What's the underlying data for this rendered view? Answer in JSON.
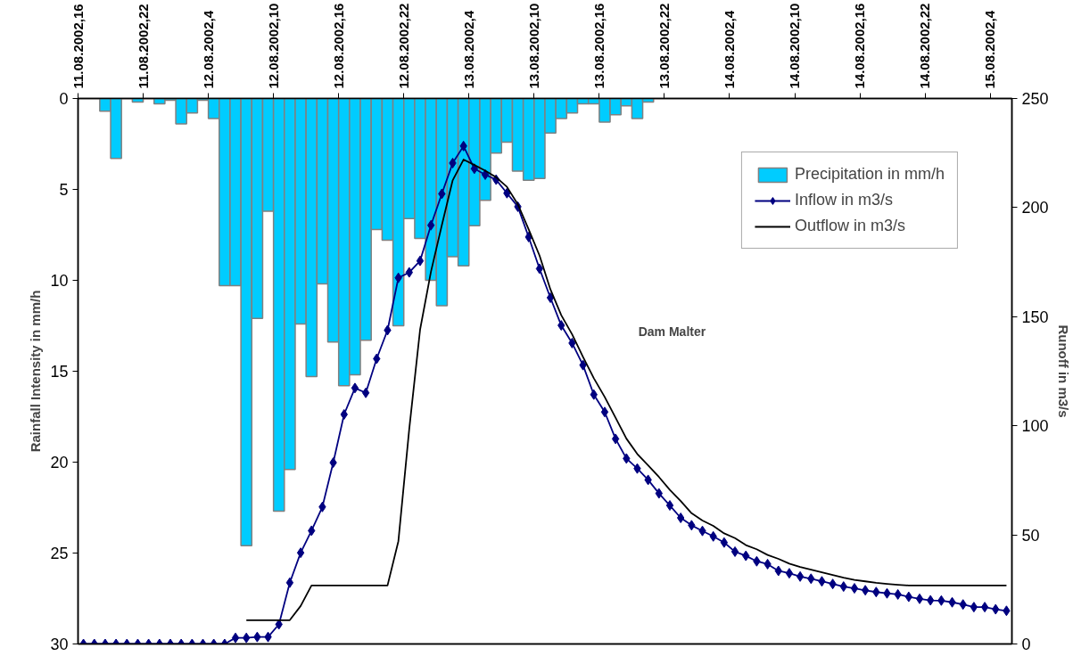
{
  "chart_data": {
    "type": "bar",
    "ylabel": "Rainfall Intensity in mm/h",
    "y2label": "Runoff in m3/s",
    "annotations": [
      "Dam Malter"
    ],
    "x": [
      "2002-08-11T16:30",
      "2002-08-11T17:30",
      "2002-08-11T18:30",
      "2002-08-11T19:30",
      "2002-08-11T20:30",
      "2002-08-11T21:30",
      "2002-08-11T22:30",
      "2002-08-11T23:30",
      "2002-08-12T00:30",
      "2002-08-12T01:30",
      "2002-08-12T02:30",
      "2002-08-12T03:30",
      "2002-08-12T04:30",
      "2002-08-12T05:30",
      "2002-08-12T06:30",
      "2002-08-12T07:30",
      "2002-08-12T08:30",
      "2002-08-12T09:30",
      "2002-08-12T10:30",
      "2002-08-12T11:30",
      "2002-08-12T12:30",
      "2002-08-12T13:30",
      "2002-08-12T14:30",
      "2002-08-12T15:30",
      "2002-08-12T16:30",
      "2002-08-12T17:30",
      "2002-08-12T18:30",
      "2002-08-12T19:30",
      "2002-08-12T20:30",
      "2002-08-12T21:30",
      "2002-08-12T22:30",
      "2002-08-12T23:30",
      "2002-08-13T00:30",
      "2002-08-13T01:30",
      "2002-08-13T02:30",
      "2002-08-13T03:30",
      "2002-08-13T04:30",
      "2002-08-13T05:30",
      "2002-08-13T06:30",
      "2002-08-13T07:30",
      "2002-08-13T08:30",
      "2002-08-13T09:30",
      "2002-08-13T10:30",
      "2002-08-13T11:30",
      "2002-08-13T12:30",
      "2002-08-13T13:30",
      "2002-08-13T14:30",
      "2002-08-13T15:30",
      "2002-08-13T16:30",
      "2002-08-13T17:30",
      "2002-08-13T18:30",
      "2002-08-13T19:30",
      "2002-08-13T20:30",
      "2002-08-13T21:30",
      "2002-08-13T22:30",
      "2002-08-13T23:30",
      "2002-08-14T00:30",
      "2002-08-14T01:30",
      "2002-08-14T02:30",
      "2002-08-14T03:30",
      "2002-08-14T04:30",
      "2002-08-14T05:30",
      "2002-08-14T06:30",
      "2002-08-14T07:30",
      "2002-08-14T08:30",
      "2002-08-14T09:30",
      "2002-08-14T10:30",
      "2002-08-14T11:30",
      "2002-08-14T12:30",
      "2002-08-14T13:30",
      "2002-08-14T14:30",
      "2002-08-14T15:30",
      "2002-08-14T16:30",
      "2002-08-14T17:30",
      "2002-08-14T18:30",
      "2002-08-14T19:30",
      "2002-08-14T20:30",
      "2002-08-14T21:30",
      "2002-08-14T22:30",
      "2002-08-14T23:30",
      "2002-08-15T00:30",
      "2002-08-15T01:30",
      "2002-08-15T02:30",
      "2002-08-15T03:30",
      "2002-08-15T04:30",
      "2002-08-15T05:30"
    ],
    "xlim": [
      "2002-08-11T16:00",
      "2002-08-15T06:00"
    ],
    "xticks": [
      {
        "value": "2002-08-11T16:00",
        "label": "11.08.2002,16"
      },
      {
        "value": "2002-08-11T22:00",
        "label": "11.08.2002,22"
      },
      {
        "value": "2002-08-12T04:00",
        "label": "12.08.2002,4"
      },
      {
        "value": "2002-08-12T10:00",
        "label": "12.08.2002,10"
      },
      {
        "value": "2002-08-12T16:00",
        "label": "12.08.2002,16"
      },
      {
        "value": "2002-08-12T22:00",
        "label": "12.08.2002,22"
      },
      {
        "value": "2002-08-13T04:00",
        "label": "13.08.2002,4"
      },
      {
        "value": "2002-08-13T10:00",
        "label": "13.08.2002,10"
      },
      {
        "value": "2002-08-13T16:00",
        "label": "13.08.2002,16"
      },
      {
        "value": "2002-08-13T22:00",
        "label": "13.08.2002,22"
      },
      {
        "value": "2002-08-14T04:00",
        "label": "14.08.2002,4"
      },
      {
        "value": "2002-08-14T10:00",
        "label": "14.08.2002,10"
      },
      {
        "value": "2002-08-14T16:00",
        "label": "14.08.2002,16"
      },
      {
        "value": "2002-08-14T22:00",
        "label": "14.08.2002,22"
      },
      {
        "value": "2002-08-15T04:00",
        "label": "15.08.2002,4"
      }
    ],
    "ylim": [
      30,
      0
    ],
    "yticks": [
      0,
      5,
      10,
      15,
      20,
      25,
      30
    ],
    "y2lim": [
      0,
      250
    ],
    "y2ticks": [
      0,
      50,
      100,
      150,
      200,
      250
    ],
    "legend": "top right",
    "series": [
      {
        "name": "Precipitation in mm/h",
        "color": "#00ccff",
        "values": [
          null,
          null,
          0.7,
          3.3,
          null,
          0.2,
          null,
          0.3,
          0.1,
          1.4,
          0.8,
          0.1,
          1.1,
          10.3,
          10.3,
          24.6,
          12.1,
          6.2,
          22.7,
          20.4,
          12.4,
          15.3,
          10.2,
          13.4,
          15.8,
          15.2,
          13.3,
          7.2,
          7.8,
          12.5,
          6.6,
          7.7,
          10.0,
          11.4,
          8.7,
          9.2,
          7.0,
          5.6,
          3.0,
          2.4,
          4.0,
          4.5,
          4.4,
          1.9,
          1.1,
          0.8,
          0.3,
          0.3,
          1.3,
          0.9,
          0.4,
          1.1,
          0.2,
          null,
          null,
          null,
          null,
          null,
          null,
          null,
          null,
          null,
          null,
          null,
          null,
          null,
          null,
          null,
          null,
          null,
          null,
          null,
          null,
          null,
          null,
          null,
          null,
          null,
          null,
          null,
          null,
          null,
          null,
          null,
          null,
          null
        ]
      },
      {
        "name": "Inflow in m3/s",
        "type": "line",
        "axis": "y2",
        "color": "#000080",
        "marker": "diamond",
        "values": [
          0,
          0,
          0,
          0,
          0,
          0,
          0,
          0,
          0,
          0,
          0,
          0,
          0,
          0,
          2.8,
          2.8,
          3.2,
          3.2,
          9.0,
          28.1,
          41.8,
          51.9,
          62.8,
          83.1,
          105.2,
          117.3,
          115.1,
          130.7,
          143.8,
          167.8,
          170.3,
          175.6,
          191.9,
          206.3,
          220.4,
          228.2,
          217.8,
          215.1,
          212.8,
          206.6,
          200.4,
          186.5,
          172.0,
          158.7,
          146.0,
          137.9,
          127.8,
          114.3,
          106.3,
          94.0,
          85.0,
          80.4,
          75.2,
          69.0,
          63.5,
          57.8,
          54.4,
          51.8,
          49.3,
          46.5,
          42.3,
          40.4,
          37.9,
          36.6,
          33.5,
          32.4,
          30.9,
          29.9,
          28.7,
          27.5,
          26.3,
          25.5,
          24.6,
          23.8,
          23.2,
          22.7,
          21.6,
          20.7,
          20.0,
          19.9,
          19.1,
          18.1,
          16.9,
          16.9,
          15.9,
          15.2
        ]
      },
      {
        "name": "Outflow in m3/s",
        "type": "line",
        "axis": "y2",
        "color": "#000000",
        "values": [
          null,
          null,
          null,
          null,
          null,
          null,
          null,
          null,
          null,
          null,
          null,
          null,
          null,
          null,
          null,
          10.9,
          10.9,
          10.9,
          10.9,
          10.9,
          17.4,
          26.8,
          26.8,
          26.8,
          26.8,
          26.8,
          26.8,
          26.8,
          26.8,
          47.1,
          98.5,
          144.1,
          170.6,
          191.9,
          212.5,
          222.0,
          219.5,
          216.9,
          213.9,
          209.5,
          201.5,
          190.0,
          178.0,
          162.5,
          150.7,
          141.9,
          131.6,
          121.8,
          113.2,
          103.7,
          94.1,
          87.1,
          81.9,
          76.5,
          70.6,
          65.5,
          59.9,
          56.6,
          54.1,
          50.7,
          48.5,
          45.3,
          43.4,
          40.8,
          39.0,
          36.8,
          35.3,
          34.1,
          32.8,
          31.6,
          30.4,
          29.4,
          28.7,
          28.0,
          27.5,
          27.1,
          26.8,
          26.8,
          26.8,
          26.8,
          26.8,
          26.8,
          26.8,
          26.8,
          26.8,
          26.8
        ]
      }
    ]
  }
}
